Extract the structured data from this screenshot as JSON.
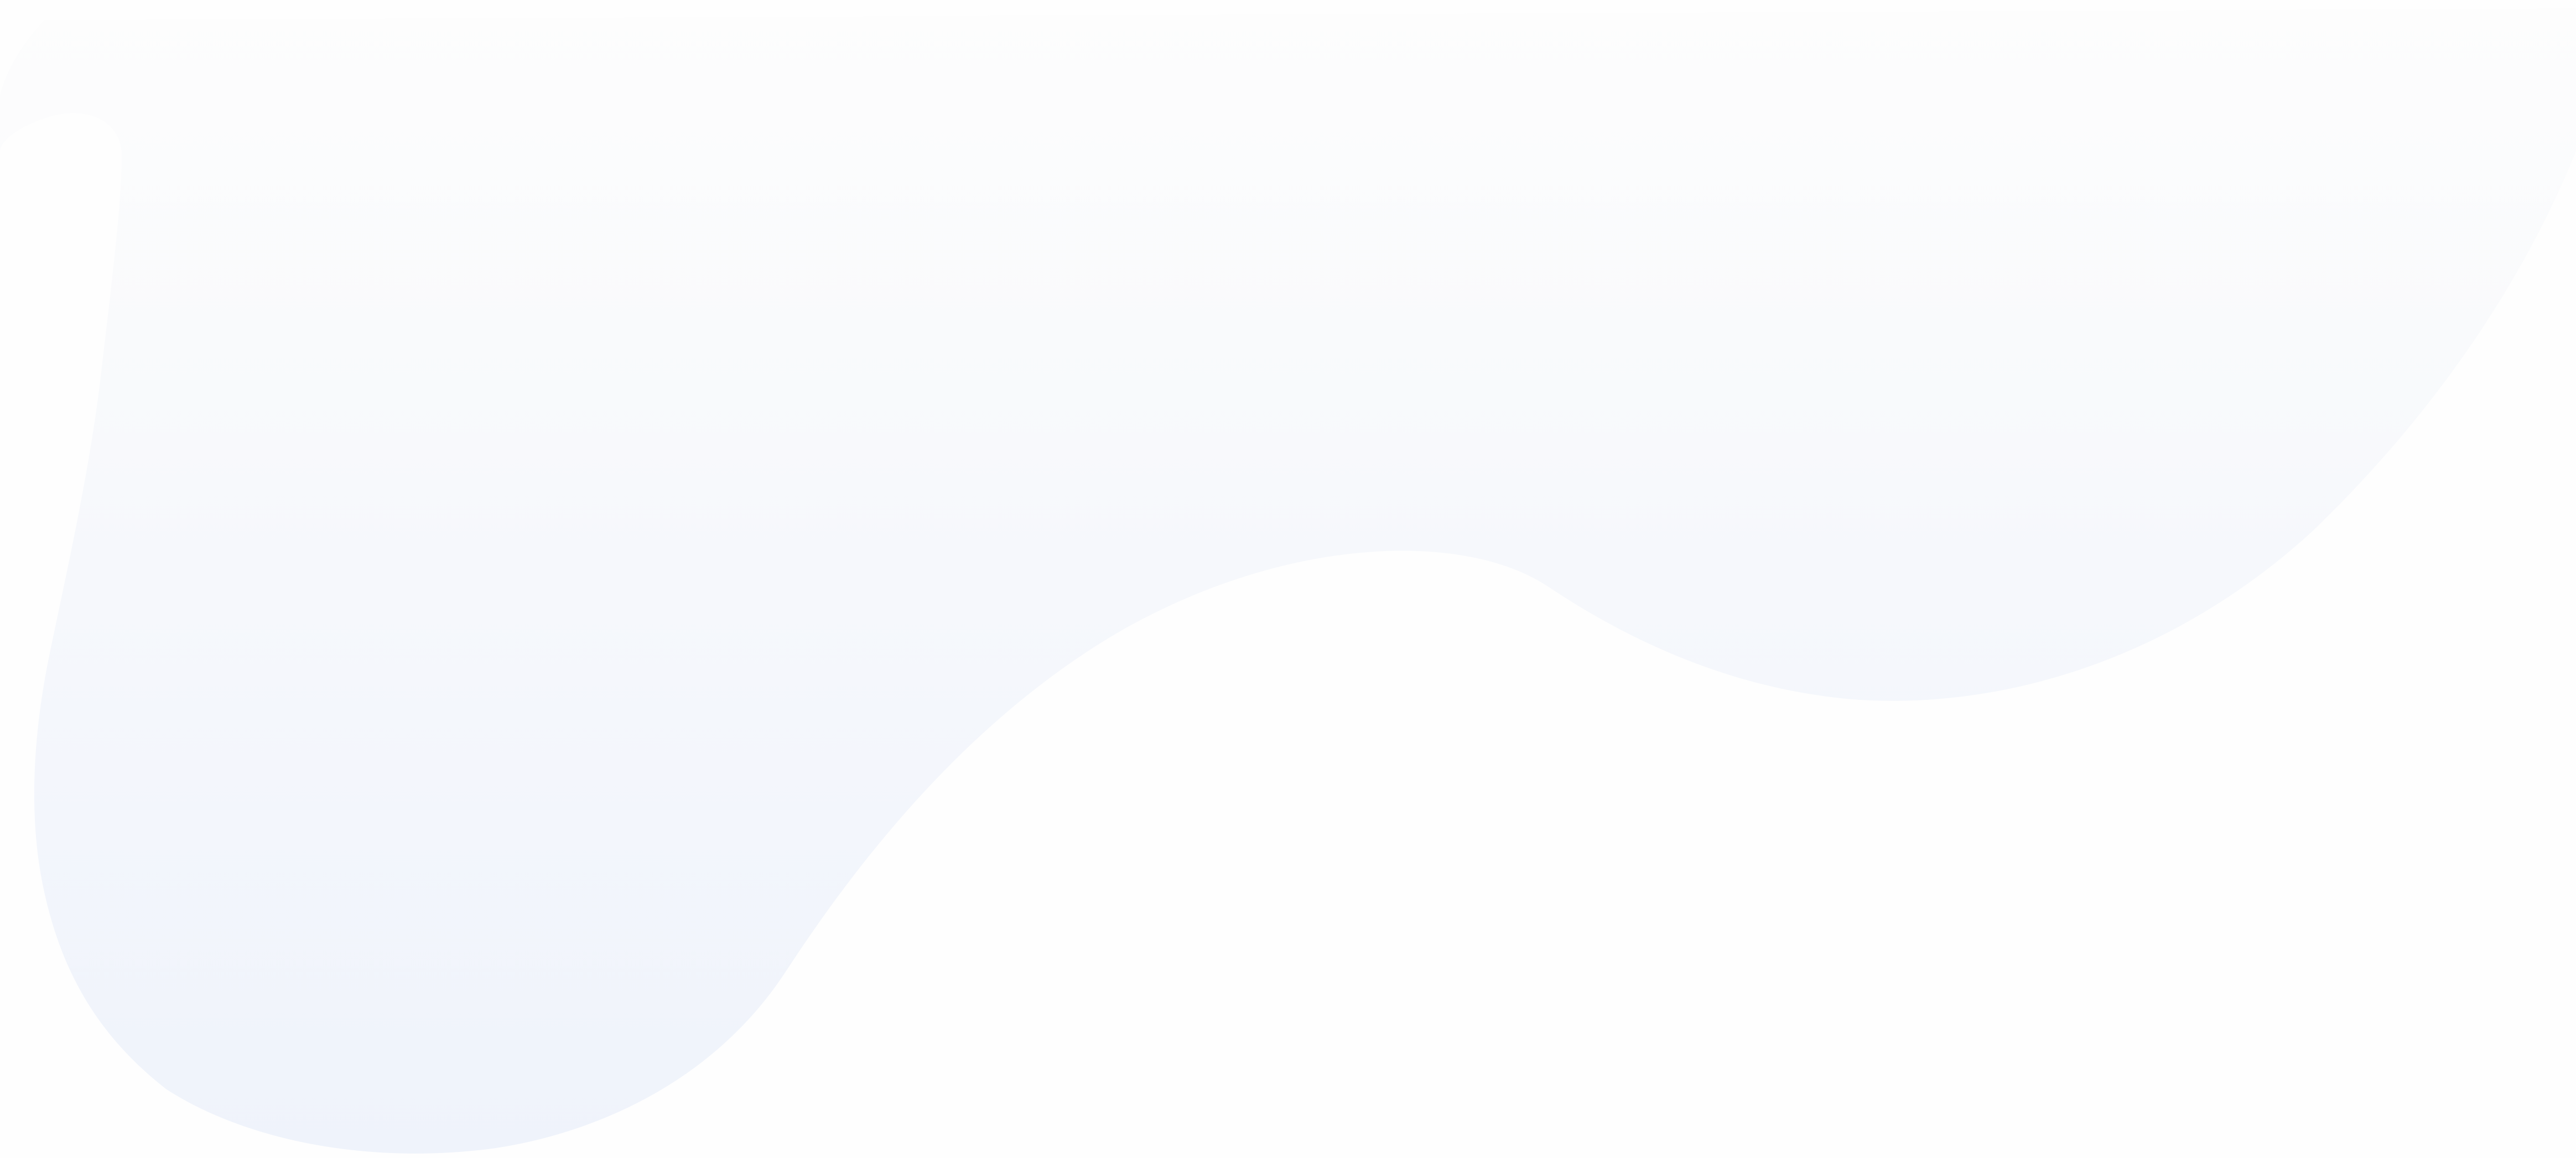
{
  "colors": {
    "background": "#fefefe",
    "gradient_top": "#fdfdfd",
    "gradient_bottom": "#eff3fb"
  }
}
